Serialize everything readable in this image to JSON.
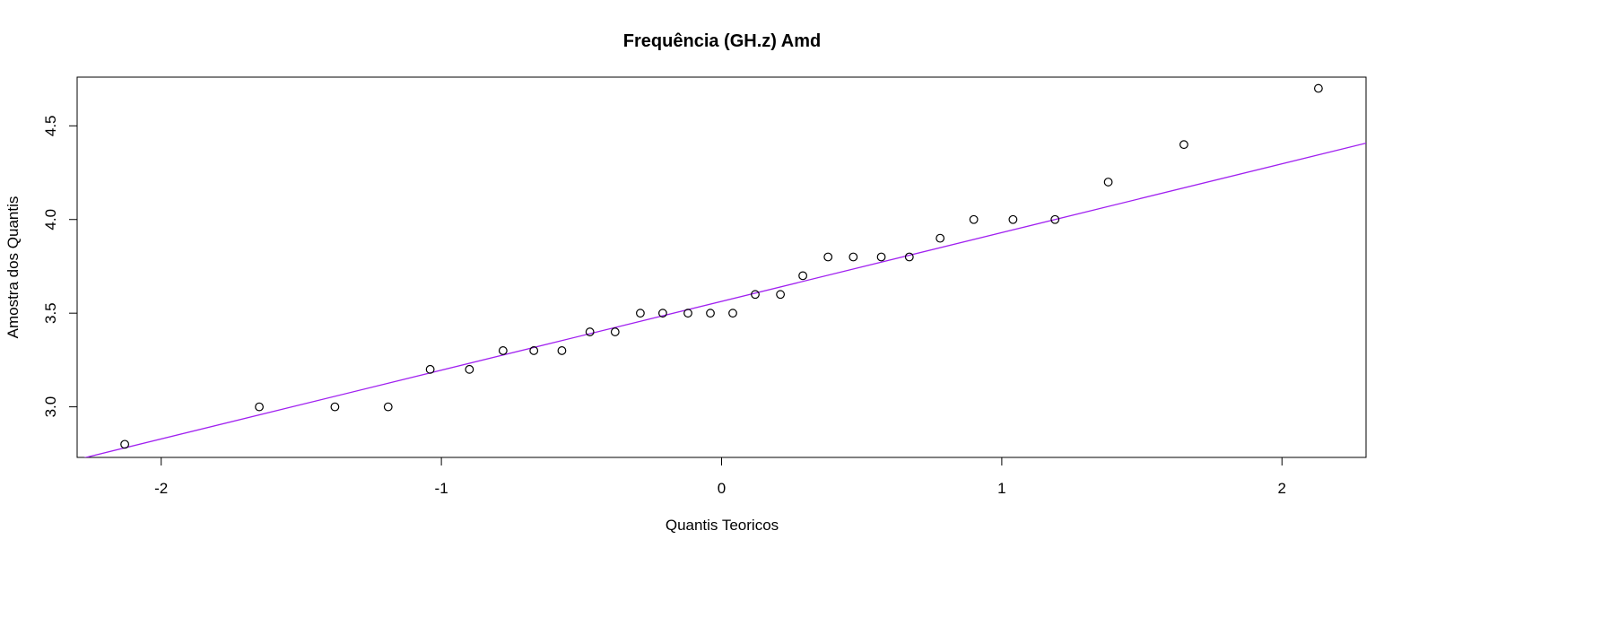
{
  "chart_data": {
    "type": "scatter",
    "title": "Frequência (GH.z) Amd",
    "xlabel": "Quantis Teoricos",
    "ylabel": "Amostra dos Quantis",
    "xlim": [
      -2.3,
      2.3
    ],
    "ylim": [
      2.73,
      4.76
    ],
    "xticks": [
      {
        "value": -2,
        "label": "-2"
      },
      {
        "value": -1,
        "label": "-1"
      },
      {
        "value": 0,
        "label": "0"
      },
      {
        "value": 1,
        "label": "1"
      },
      {
        "value": 2,
        "label": "2"
      }
    ],
    "yticks": [
      {
        "value": 3.0,
        "label": "3.0"
      },
      {
        "value": 3.5,
        "label": "3.5"
      },
      {
        "value": 4.0,
        "label": "4.0"
      },
      {
        "value": 4.5,
        "label": "4.5"
      }
    ],
    "grid": false,
    "points": [
      {
        "x": -2.13,
        "y": 2.8
      },
      {
        "x": -1.65,
        "y": 3.0
      },
      {
        "x": -1.38,
        "y": 3.0
      },
      {
        "x": -1.19,
        "y": 3.0
      },
      {
        "x": -1.04,
        "y": 3.2
      },
      {
        "x": -0.9,
        "y": 3.2
      },
      {
        "x": -0.78,
        "y": 3.3
      },
      {
        "x": -0.67,
        "y": 3.3
      },
      {
        "x": -0.57,
        "y": 3.3
      },
      {
        "x": -0.47,
        "y": 3.4
      },
      {
        "x": -0.38,
        "y": 3.4
      },
      {
        "x": -0.29,
        "y": 3.5
      },
      {
        "x": -0.21,
        "y": 3.5
      },
      {
        "x": -0.12,
        "y": 3.5
      },
      {
        "x": -0.04,
        "y": 3.5
      },
      {
        "x": 0.04,
        "y": 3.5
      },
      {
        "x": 0.12,
        "y": 3.6
      },
      {
        "x": 0.21,
        "y": 3.6
      },
      {
        "x": 0.29,
        "y": 3.7
      },
      {
        "x": 0.38,
        "y": 3.8
      },
      {
        "x": 0.47,
        "y": 3.8
      },
      {
        "x": 0.57,
        "y": 3.8
      },
      {
        "x": 0.67,
        "y": 3.8
      },
      {
        "x": 0.78,
        "y": 3.9
      },
      {
        "x": 0.9,
        "y": 4.0
      },
      {
        "x": 1.04,
        "y": 4.0
      },
      {
        "x": 1.19,
        "y": 4.0
      },
      {
        "x": 1.38,
        "y": 4.2
      },
      {
        "x": 1.65,
        "y": 4.4
      },
      {
        "x": 2.13,
        "y": 4.7
      }
    ],
    "reference_line": {
      "intercept": 3.563,
      "slope": 0.3672,
      "color": "#a020f0"
    },
    "colors": {
      "points": "#000000",
      "line": "#a020f0",
      "axis": "#000000"
    }
  }
}
